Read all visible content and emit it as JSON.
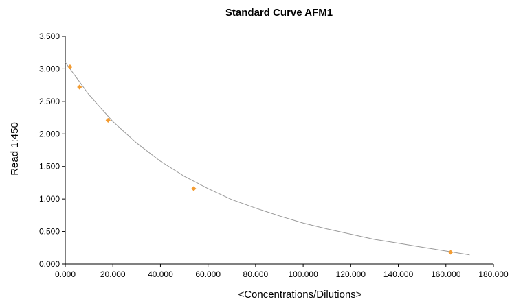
{
  "chart_data": {
    "type": "scatter",
    "title": "Standard Curve AFM1",
    "xlabel": "<Concentrations/Dilutions>",
    "ylabel": "Read 1:450",
    "xlim": [
      0,
      180
    ],
    "ylim": [
      0,
      3.5
    ],
    "x_ticks": [
      "0.000",
      "20.000",
      "40.000",
      "60.000",
      "80.000",
      "100.000",
      "120.000",
      "140.000",
      "160.000",
      "180.000"
    ],
    "y_ticks": [
      "0.000",
      "0.500",
      "1.000",
      "1.500",
      "2.000",
      "2.500",
      "3.000",
      "3.500"
    ],
    "grid": false,
    "legend": "none",
    "series": [
      {
        "kind": "points",
        "color": "#f39c32",
        "marker": "diamond",
        "x": [
          2,
          6,
          18,
          54,
          162
        ],
        "y": [
          3.03,
          2.72,
          2.21,
          1.16,
          0.18
        ]
      },
      {
        "kind": "fit-curve",
        "color": "#999999",
        "x": [
          0,
          10,
          20,
          30,
          40,
          50,
          60,
          70,
          80,
          90,
          100,
          110,
          120,
          130,
          140,
          150,
          160,
          170
        ],
        "y": [
          3.1,
          2.6,
          2.19,
          1.86,
          1.58,
          1.35,
          1.16,
          0.99,
          0.86,
          0.74,
          0.63,
          0.54,
          0.46,
          0.38,
          0.32,
          0.26,
          0.2,
          0.14
        ]
      }
    ],
    "colors": {
      "axis": "#000000"
    }
  }
}
